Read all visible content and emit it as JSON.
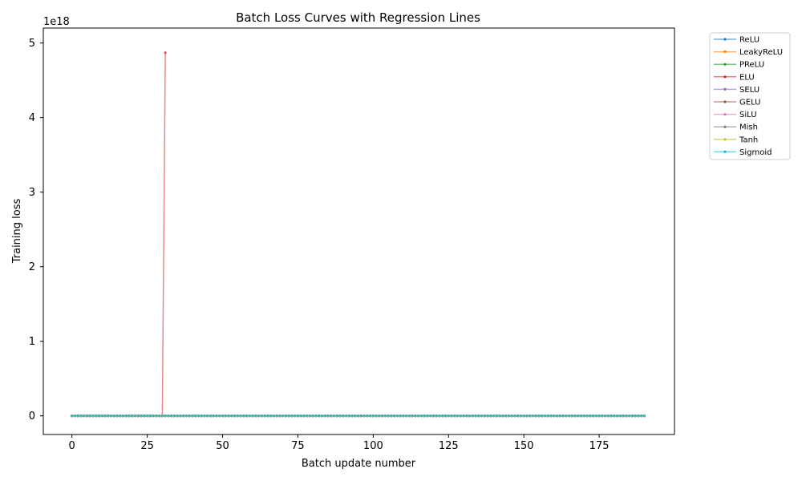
{
  "chart_data": {
    "type": "line",
    "title": "Batch Loss Curves with Regression Lines",
    "xlabel": "Batch update number",
    "ylabel": "Training loss",
    "y_offset_text": "1e18",
    "xlim": [
      -9.5,
      200
    ],
    "ylim": [
      -0.25,
      5.2
    ],
    "y_scale_factor": 1e+18,
    "xticks": [
      0,
      25,
      50,
      75,
      100,
      125,
      150,
      175
    ],
    "yticks": [
      0,
      1,
      2,
      3,
      4,
      5
    ],
    "grid": false,
    "legend_position": "outside-top-right",
    "x_range": [
      0,
      190
    ],
    "series": [
      {
        "name": "ReLU",
        "color": "#1f77b4",
        "points": [
          [
            0,
            0
          ],
          [
            190,
            0
          ]
        ]
      },
      {
        "name": "LeakyReLU",
        "color": "#ff7f0e",
        "points": [
          [
            0,
            0
          ],
          [
            190,
            0
          ]
        ]
      },
      {
        "name": "PReLU",
        "color": "#2ca02c",
        "points": [
          [
            0,
            0
          ],
          [
            190,
            0
          ]
        ]
      },
      {
        "name": "ELU",
        "color": "#d62728",
        "points": [
          [
            0,
            0
          ],
          [
            30,
            0
          ],
          [
            31,
            4.87
          ]
        ]
      },
      {
        "name": "SELU",
        "color": "#9467bd",
        "points": [
          [
            0,
            0
          ],
          [
            190,
            0
          ]
        ]
      },
      {
        "name": "GELU",
        "color": "#8c564b",
        "points": [
          [
            0,
            0
          ],
          [
            190,
            0
          ]
        ]
      },
      {
        "name": "SiLU",
        "color": "#e377c2",
        "points": [
          [
            0,
            0
          ],
          [
            190,
            0
          ]
        ]
      },
      {
        "name": "Mish",
        "color": "#7f7f7f",
        "points": [
          [
            0,
            0
          ],
          [
            190,
            0
          ]
        ]
      },
      {
        "name": "Tanh",
        "color": "#bcbd22",
        "points": [
          [
            0,
            0
          ],
          [
            190,
            0
          ]
        ]
      },
      {
        "name": "Sigmoid",
        "color": "#17becf",
        "points": [
          [
            0,
            0
          ],
          [
            190,
            0
          ]
        ]
      }
    ]
  }
}
